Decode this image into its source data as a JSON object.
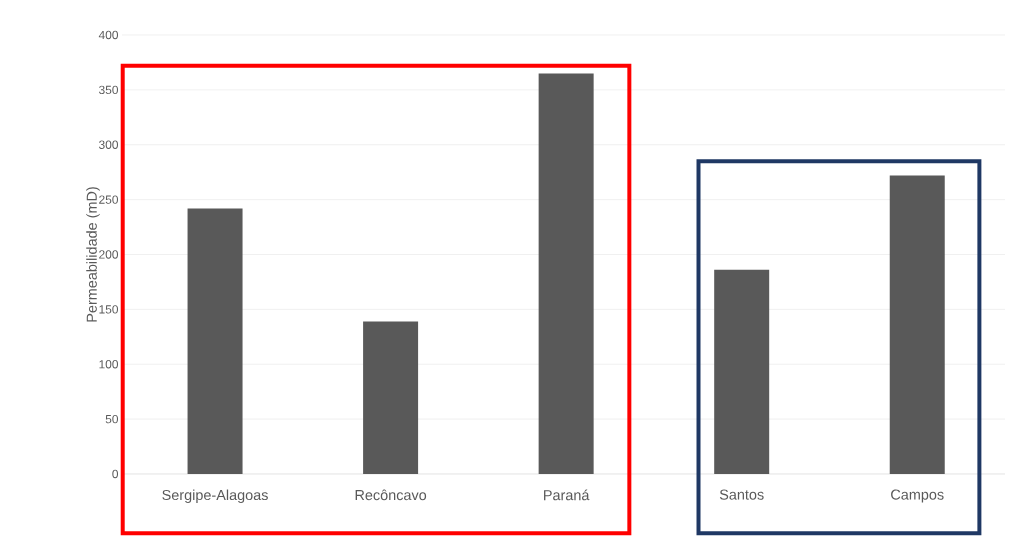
{
  "chart_data": {
    "type": "bar",
    "ylabel": "Permeabilidade (mD)",
    "categories": [
      "Sergipe-Alagoas",
      "Recôncavo",
      "Paraná",
      "Santos",
      "Campos"
    ],
    "values": [
      242,
      139,
      365,
      186,
      272
    ],
    "color": "#595959",
    "ylim": [
      0,
      400
    ],
    "yticks": [
      0,
      50,
      100,
      150,
      200,
      250,
      300,
      350,
      400
    ],
    "grid": "y"
  }
}
